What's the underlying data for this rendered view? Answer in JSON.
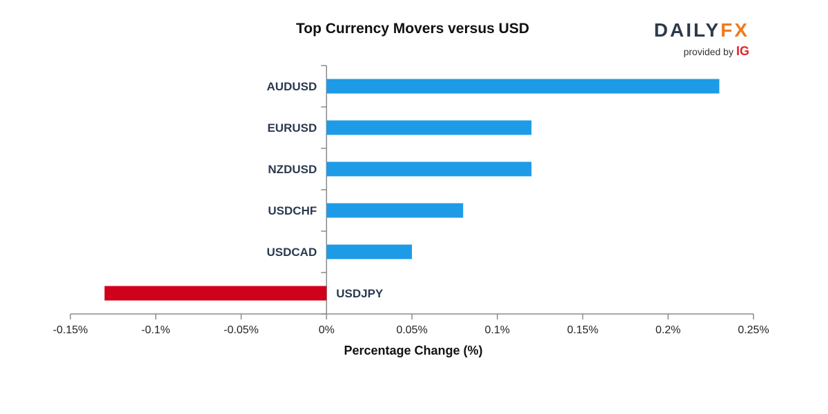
{
  "chart_data": {
    "type": "bar",
    "orientation": "horizontal",
    "title": "Top Currency Movers versus USD",
    "xlabel": "Percentage Change (%)",
    "ylabel": "",
    "categories": [
      "AUDUSD",
      "EURUSD",
      "NZDUSD",
      "USDCHF",
      "USDCAD",
      "USDJPY"
    ],
    "values": [
      0.23,
      0.12,
      0.12,
      0.08,
      0.05,
      -0.13
    ],
    "xlim": [
      -0.15,
      0.25
    ],
    "xticks": [
      -0.15,
      -0.1,
      -0.05,
      0,
      0.05,
      0.1,
      0.15,
      0.2,
      0.25
    ],
    "xtick_labels": [
      "-0.15%",
      "-0.1%",
      "-0.05%",
      "0%",
      "0.05%",
      "0.1%",
      "0.15%",
      "0.2%",
      "0.25%"
    ],
    "grid": false,
    "colors": {
      "positive": "#1e9be6",
      "negative": "#d0021b",
      "axis": "#8a8a8a"
    }
  },
  "brand": {
    "word_main": "DAILY",
    "word_accent": "FX",
    "provided_by": "provided by",
    "ig": "IG"
  }
}
